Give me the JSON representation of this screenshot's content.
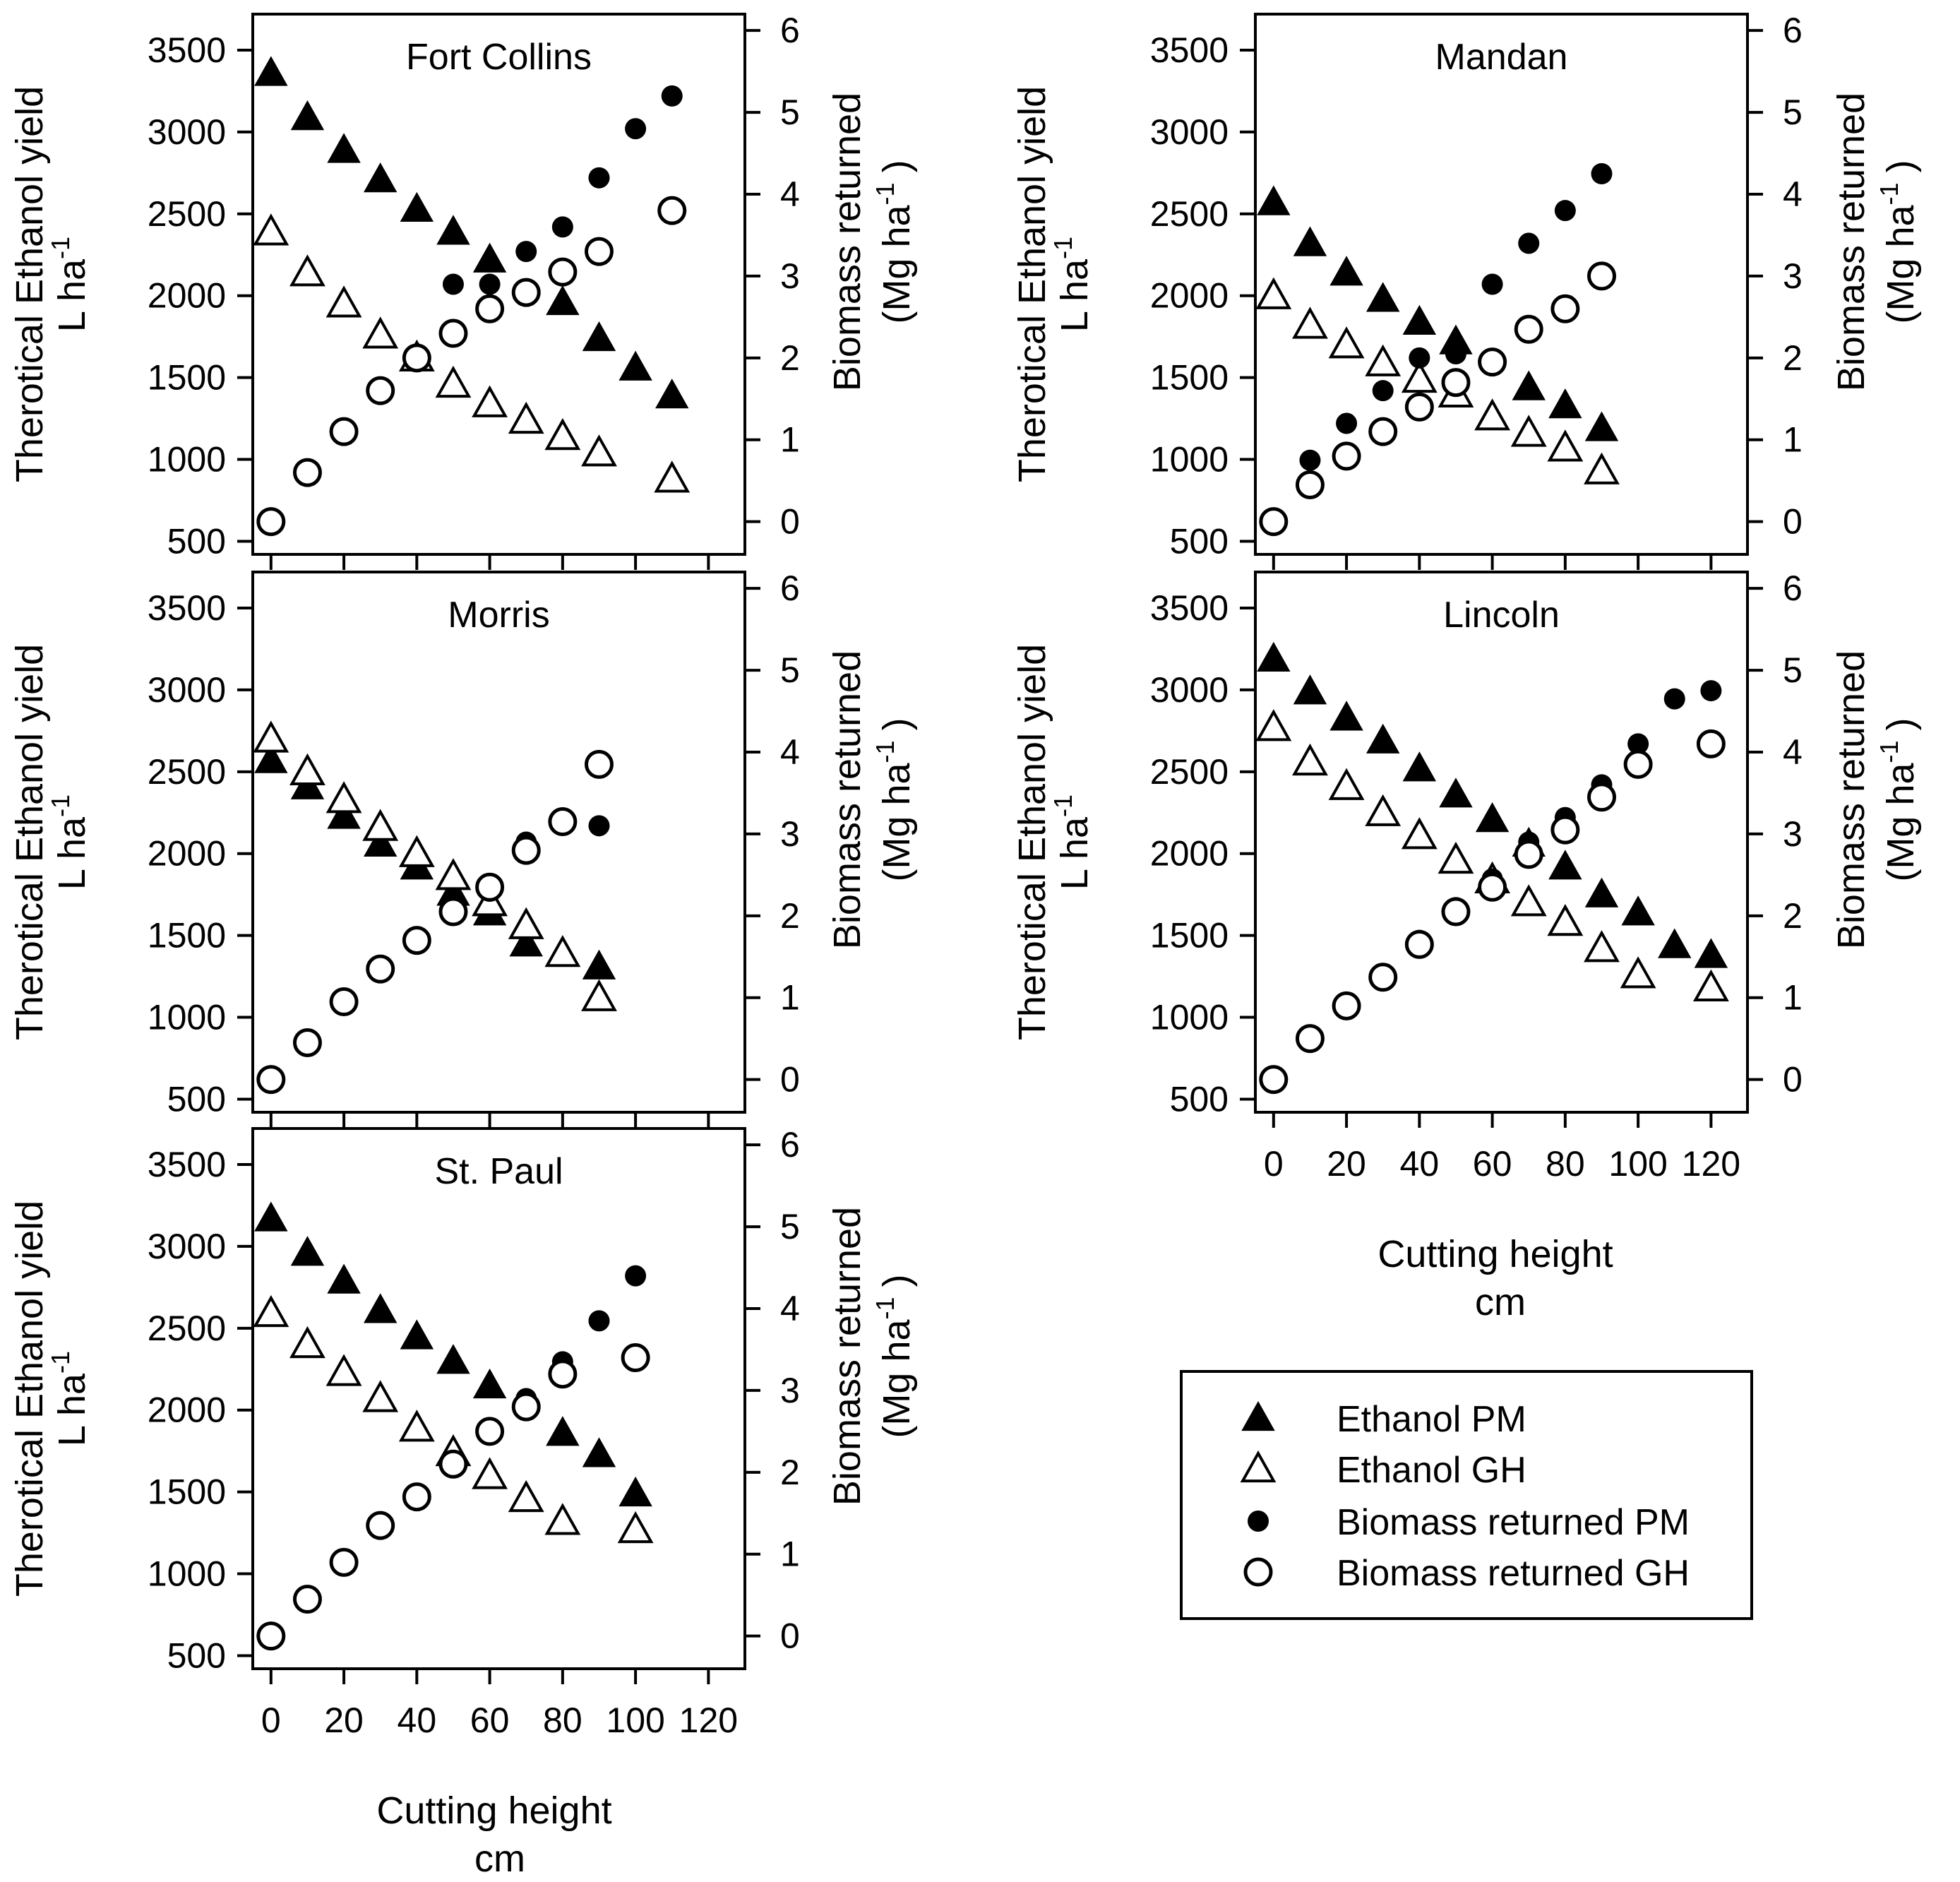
{
  "figure": {
    "left_axis_label_line1": "Therotical Ethanol yield",
    "left_axis_label_line2": "L ha",
    "left_axis_label_sup": "-1",
    "right_axis_label_line1": "Biomass returned",
    "right_axis_label_line2": "(Mg ha",
    "right_axis_label_sup": "-1",
    "right_axis_label_close": ")",
    "x_axis_label_line1": "Cutting height",
    "x_axis_label_line2": "cm"
  },
  "legend": {
    "entries": [
      {
        "label": "Ethanol PM",
        "marker": "filled-triangle"
      },
      {
        "label": "Ethanol GH",
        "marker": "open-triangle"
      },
      {
        "label": "Biomass returned PM",
        "marker": "filled-circle"
      },
      {
        "label": "Biomass returned GH",
        "marker": "open-circle"
      }
    ]
  },
  "chart_data": [
    {
      "type": "scatter",
      "title": "Fort Collins",
      "xlabel": "Cutting height cm",
      "ylabel": "Therotical Ethanol yield L ha-1",
      "y2label": "Biomass returned (Mg ha-1)",
      "xlim": [
        -5,
        130
      ],
      "ylim": [
        420,
        3720
      ],
      "y2lim": [
        -0.4,
        6.2
      ],
      "xticks": [
        0,
        20,
        40,
        60,
        80,
        100,
        120
      ],
      "yticks": [
        500,
        1000,
        1500,
        2000,
        2500,
        3000,
        3500
      ],
      "y2ticks": [
        0,
        1,
        2,
        3,
        4,
        5,
        6
      ],
      "show_x_ticklabels": false,
      "series": [
        {
          "name": "Ethanol PM",
          "axis": "left",
          "marker": "filled-triangle",
          "x": [
            0,
            10,
            20,
            30,
            40,
            50,
            60,
            80,
            90,
            100,
            110
          ],
          "y": [
            3360,
            3090,
            2890,
            2710,
            2530,
            2390,
            2220,
            1960,
            1740,
            1560,
            1390
          ]
        },
        {
          "name": "Ethanol GH",
          "axis": "left",
          "marker": "open-triangle",
          "x": [
            0,
            10,
            20,
            30,
            40,
            50,
            60,
            70,
            80,
            90,
            110
          ],
          "y": [
            2390,
            2140,
            1950,
            1760,
            1620,
            1460,
            1340,
            1240,
            1140,
            1040,
            880
          ]
        },
        {
          "name": "Biomass returned PM",
          "axis": "right",
          "marker": "filled-circle",
          "x": [
            50,
            60,
            70,
            80,
            90,
            100,
            110
          ],
          "y": [
            2.9,
            2.9,
            3.3,
            3.6,
            4.2,
            4.8,
            5.2
          ]
        },
        {
          "name": "Biomass returned GH",
          "axis": "right",
          "marker": "open-circle",
          "x": [
            0,
            10,
            20,
            30,
            40,
            50,
            60,
            70,
            80,
            90,
            110
          ],
          "y": [
            0.0,
            0.6,
            1.1,
            1.6,
            2.0,
            2.3,
            2.6,
            2.8,
            3.05,
            3.3,
            3.8
          ]
        }
      ]
    },
    {
      "type": "scatter",
      "title": "Mandan",
      "xlabel": "Cutting height cm",
      "ylabel": "Therotical Ethanol yield L ha-1",
      "y2label": "Biomass returned (Mg ha-1)",
      "xlim": [
        -5,
        130
      ],
      "ylim": [
        420,
        3720
      ],
      "y2lim": [
        -0.4,
        6.2
      ],
      "xticks": [
        0,
        20,
        40,
        60,
        80,
        100,
        120
      ],
      "yticks": [
        500,
        1000,
        1500,
        2000,
        2500,
        3000,
        3500
      ],
      "y2ticks": [
        0,
        1,
        2,
        3,
        4,
        5,
        6
      ],
      "show_x_ticklabels": false,
      "series": [
        {
          "name": "Ethanol PM",
          "axis": "left",
          "marker": "filled-triangle",
          "x": [
            0,
            10,
            20,
            30,
            40,
            50,
            70,
            80,
            90
          ],
          "y": [
            2570,
            2320,
            2140,
            1980,
            1840,
            1720,
            1440,
            1330,
            1190
          ]
        },
        {
          "name": "Ethanol GH",
          "axis": "left",
          "marker": "open-triangle",
          "x": [
            0,
            10,
            20,
            30,
            40,
            50,
            60,
            70,
            80,
            90
          ],
          "y": [
            2000,
            1820,
            1700,
            1590,
            1490,
            1400,
            1260,
            1160,
            1070,
            930
          ]
        },
        {
          "name": "Biomass returned PM",
          "axis": "right",
          "marker": "filled-circle",
          "x": [
            10,
            20,
            30,
            40,
            50,
            60,
            70,
            80,
            90
          ],
          "y": [
            0.75,
            1.2,
            1.6,
            2.0,
            2.05,
            2.9,
            3.4,
            3.8,
            4.25
          ]
        },
        {
          "name": "Biomass returned GH",
          "axis": "right",
          "marker": "open-circle",
          "x": [
            0,
            10,
            20,
            30,
            40,
            50,
            60,
            70,
            80,
            90
          ],
          "y": [
            0.0,
            0.45,
            0.8,
            1.1,
            1.4,
            1.7,
            1.95,
            2.35,
            2.6,
            3.0
          ]
        }
      ]
    },
    {
      "type": "scatter",
      "title": "Morris",
      "xlabel": "Cutting height cm",
      "ylabel": "Therotical Ethanol yield L ha-1",
      "y2label": "Biomass returned (Mg ha-1)",
      "xlim": [
        -5,
        130
      ],
      "ylim": [
        420,
        3720
      ],
      "y2lim": [
        -0.4,
        6.2
      ],
      "xticks": [
        0,
        20,
        40,
        60,
        80,
        100,
        120
      ],
      "yticks": [
        500,
        1000,
        1500,
        2000,
        2500,
        3000,
        3500
      ],
      "y2ticks": [
        0,
        1,
        2,
        3,
        4,
        5,
        6
      ],
      "show_x_ticklabels": false,
      "series": [
        {
          "name": "Ethanol PM",
          "axis": "left",
          "marker": "filled-triangle",
          "x": [
            0,
            10,
            20,
            30,
            40,
            50,
            60,
            70,
            90
          ],
          "y": [
            2570,
            2410,
            2230,
            2060,
            1920,
            1760,
            1640,
            1450,
            1310
          ]
        },
        {
          "name": "Ethanol GH",
          "axis": "left",
          "marker": "open-triangle",
          "x": [
            0,
            10,
            20,
            30,
            40,
            50,
            60,
            70,
            80,
            90
          ],
          "y": [
            2700,
            2500,
            2330,
            2160,
            2000,
            1860,
            1700,
            1560,
            1390,
            1120
          ]
        },
        {
          "name": "Biomass returned PM",
          "axis": "right",
          "marker": "filled-circle",
          "x": [
            60,
            70,
            90
          ],
          "y": [
            2.3,
            2.9,
            3.1
          ]
        },
        {
          "name": "Biomass returned GH",
          "axis": "right",
          "marker": "open-circle",
          "x": [
            0,
            10,
            20,
            30,
            40,
            50,
            60,
            70,
            80,
            90
          ],
          "y": [
            0.0,
            0.45,
            0.95,
            1.35,
            1.7,
            2.05,
            2.35,
            2.8,
            3.15,
            3.85
          ]
        }
      ]
    },
    {
      "type": "scatter",
      "title": "Lincoln",
      "xlabel": "Cutting height cm",
      "ylabel": "Therotical Ethanol yield L ha-1",
      "y2label": "Biomass returned (Mg ha-1)",
      "xlim": [
        -5,
        130
      ],
      "ylim": [
        420,
        3720
      ],
      "y2lim": [
        -0.4,
        6.2
      ],
      "xticks": [
        0,
        20,
        40,
        60,
        80,
        100,
        120
      ],
      "yticks": [
        500,
        1000,
        1500,
        2000,
        2500,
        3000,
        3500
      ],
      "y2ticks": [
        0,
        1,
        2,
        3,
        4,
        5,
        6
      ],
      "show_x_ticklabels": true,
      "series": [
        {
          "name": "Ethanol PM",
          "axis": "left",
          "marker": "filled-triangle",
          "x": [
            0,
            10,
            20,
            30,
            40,
            50,
            60,
            70,
            80,
            90,
            100,
            110,
            120
          ],
          "y": [
            3190,
            2990,
            2830,
            2690,
            2520,
            2360,
            2210,
            2060,
            1920,
            1750,
            1640,
            1440,
            1380
          ]
        },
        {
          "name": "Ethanol GH",
          "axis": "left",
          "marker": "open-triangle",
          "x": [
            0,
            10,
            20,
            30,
            40,
            50,
            60,
            70,
            80,
            90,
            100,
            120
          ],
          "y": [
            2770,
            2560,
            2410,
            2250,
            2110,
            1960,
            1840,
            1700,
            1580,
            1420,
            1260,
            1180
          ]
        },
        {
          "name": "Biomass returned PM",
          "axis": "right",
          "marker": "filled-circle",
          "x": [
            40,
            50,
            60,
            70,
            80,
            90,
            100,
            110,
            120
          ],
          "y": [
            1.7,
            2.1,
            2.45,
            2.9,
            3.2,
            3.6,
            4.1,
            4.65,
            4.75
          ]
        },
        {
          "name": "Biomass returned GH",
          "axis": "right",
          "marker": "open-circle",
          "x": [
            0,
            10,
            20,
            30,
            40,
            50,
            60,
            70,
            80,
            90,
            100,
            120
          ],
          "y": [
            0.0,
            0.5,
            0.9,
            1.25,
            1.65,
            2.05,
            2.35,
            2.75,
            3.05,
            3.45,
            3.85,
            4.1
          ]
        }
      ]
    },
    {
      "type": "scatter",
      "title": "St. Paul",
      "xlabel": "Cutting height cm",
      "ylabel": "Therotical Ethanol yield L ha-1",
      "y2label": "Biomass returned (Mg ha-1)",
      "xlim": [
        -5,
        130
      ],
      "ylim": [
        420,
        3720
      ],
      "y2lim": [
        -0.4,
        6.2
      ],
      "xticks": [
        0,
        20,
        40,
        60,
        80,
        100,
        120
      ],
      "yticks": [
        500,
        1000,
        1500,
        2000,
        2500,
        3000,
        3500
      ],
      "y2ticks": [
        0,
        1,
        2,
        3,
        4,
        5,
        6
      ],
      "show_x_ticklabels": true,
      "series": [
        {
          "name": "Ethanol PM",
          "axis": "left",
          "marker": "filled-triangle",
          "x": [
            0,
            10,
            20,
            30,
            40,
            50,
            60,
            80,
            90,
            100
          ],
          "y": [
            3170,
            2960,
            2790,
            2610,
            2450,
            2300,
            2150,
            1860,
            1730,
            1490
          ]
        },
        {
          "name": "Ethanol GH",
          "axis": "left",
          "marker": "open-triangle",
          "x": [
            0,
            10,
            20,
            30,
            40,
            50,
            60,
            70,
            80,
            100
          ],
          "y": [
            2590,
            2400,
            2230,
            2070,
            1890,
            1740,
            1600,
            1460,
            1320,
            1270
          ]
        },
        {
          "name": "Biomass returned PM",
          "axis": "right",
          "marker": "filled-circle",
          "x": [
            70,
            80,
            90,
            100
          ],
          "y": [
            2.9,
            3.35,
            3.85,
            4.4
          ]
        },
        {
          "name": "Biomass returned GH",
          "axis": "right",
          "marker": "open-circle",
          "x": [
            0,
            10,
            20,
            30,
            40,
            50,
            60,
            70,
            80,
            100
          ],
          "y": [
            0.0,
            0.45,
            0.9,
            1.35,
            1.7,
            2.1,
            2.5,
            2.8,
            3.2,
            3.4
          ]
        }
      ]
    }
  ]
}
